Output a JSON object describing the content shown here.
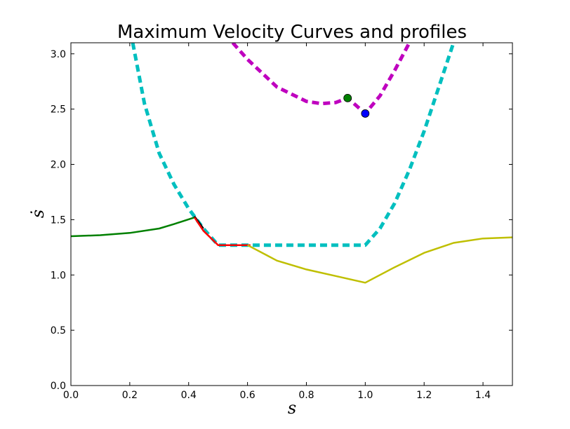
{
  "chart_data": {
    "type": "line",
    "title": "Maximum Velocity Curves and profiles",
    "xlabel": "s",
    "ylabel": "ṡ",
    "xlim": [
      0.0,
      1.5
    ],
    "ylim": [
      0.0,
      3.1
    ],
    "xticks": [
      0.0,
      0.2,
      0.4,
      0.6,
      0.8,
      1.0,
      1.2,
      1.4
    ],
    "yticks": [
      0.0,
      0.5,
      1.0,
      1.5,
      2.0,
      2.5,
      3.0
    ],
    "xtick_labels": [
      "0.0",
      "0.2",
      "0.4",
      "0.6",
      "0.8",
      "1.0",
      "1.2",
      "1.4"
    ],
    "ytick_labels": [
      "0.0",
      "0.5",
      "1.0",
      "1.5",
      "2.0",
      "2.5",
      "3.0"
    ],
    "grid": false,
    "series": [
      {
        "style": "dashed",
        "color": "#00bfbf",
        "x": [
          0.21,
          0.25,
          0.3,
          0.35,
          0.4,
          0.45,
          0.5,
          0.6,
          0.8,
          1.0,
          1.05,
          1.1,
          1.15,
          1.2,
          1.25,
          1.3
        ],
        "y": [
          3.1,
          2.55,
          2.1,
          1.82,
          1.6,
          1.42,
          1.27,
          1.27,
          1.27,
          1.27,
          1.42,
          1.65,
          1.95,
          2.3,
          2.7,
          3.1
        ]
      },
      {
        "style": "dashed",
        "color": "#bf00bf",
        "x": [
          0.55,
          0.6,
          0.7,
          0.8,
          0.85,
          0.9,
          0.94,
          0.97,
          1.0,
          1.05,
          1.1,
          1.15
        ],
        "y": [
          3.1,
          2.95,
          2.7,
          2.57,
          2.55,
          2.56,
          2.6,
          2.53,
          2.46,
          2.62,
          2.85,
          3.1
        ]
      },
      {
        "style": "solid",
        "color": "#008000",
        "x": [
          0.0,
          0.1,
          0.2,
          0.3,
          0.35,
          0.42
        ],
        "y": [
          1.35,
          1.36,
          1.38,
          1.42,
          1.46,
          1.52
        ]
      },
      {
        "style": "solid",
        "color": "#000000",
        "x": [
          0.42,
          0.45
        ],
        "y": [
          1.53,
          1.42
        ]
      },
      {
        "style": "solid",
        "color": "#ff0000",
        "x": [
          0.42,
          0.45,
          0.5,
          0.61
        ],
        "y": [
          1.52,
          1.4,
          1.27,
          1.27
        ]
      },
      {
        "style": "solid",
        "color": "#bfbf00",
        "x": [
          0.6,
          0.7,
          0.8,
          0.9,
          1.0,
          1.1,
          1.2,
          1.3,
          1.4,
          1.5
        ],
        "y": [
          1.27,
          1.13,
          1.05,
          0.99,
          0.93,
          1.07,
          1.2,
          1.29,
          1.33,
          1.34
        ]
      }
    ],
    "points": [
      {
        "x": 0.94,
        "y": 2.6,
        "color": "#008000"
      },
      {
        "x": 1.0,
        "y": 2.46,
        "color": "#0000ff"
      }
    ]
  }
}
